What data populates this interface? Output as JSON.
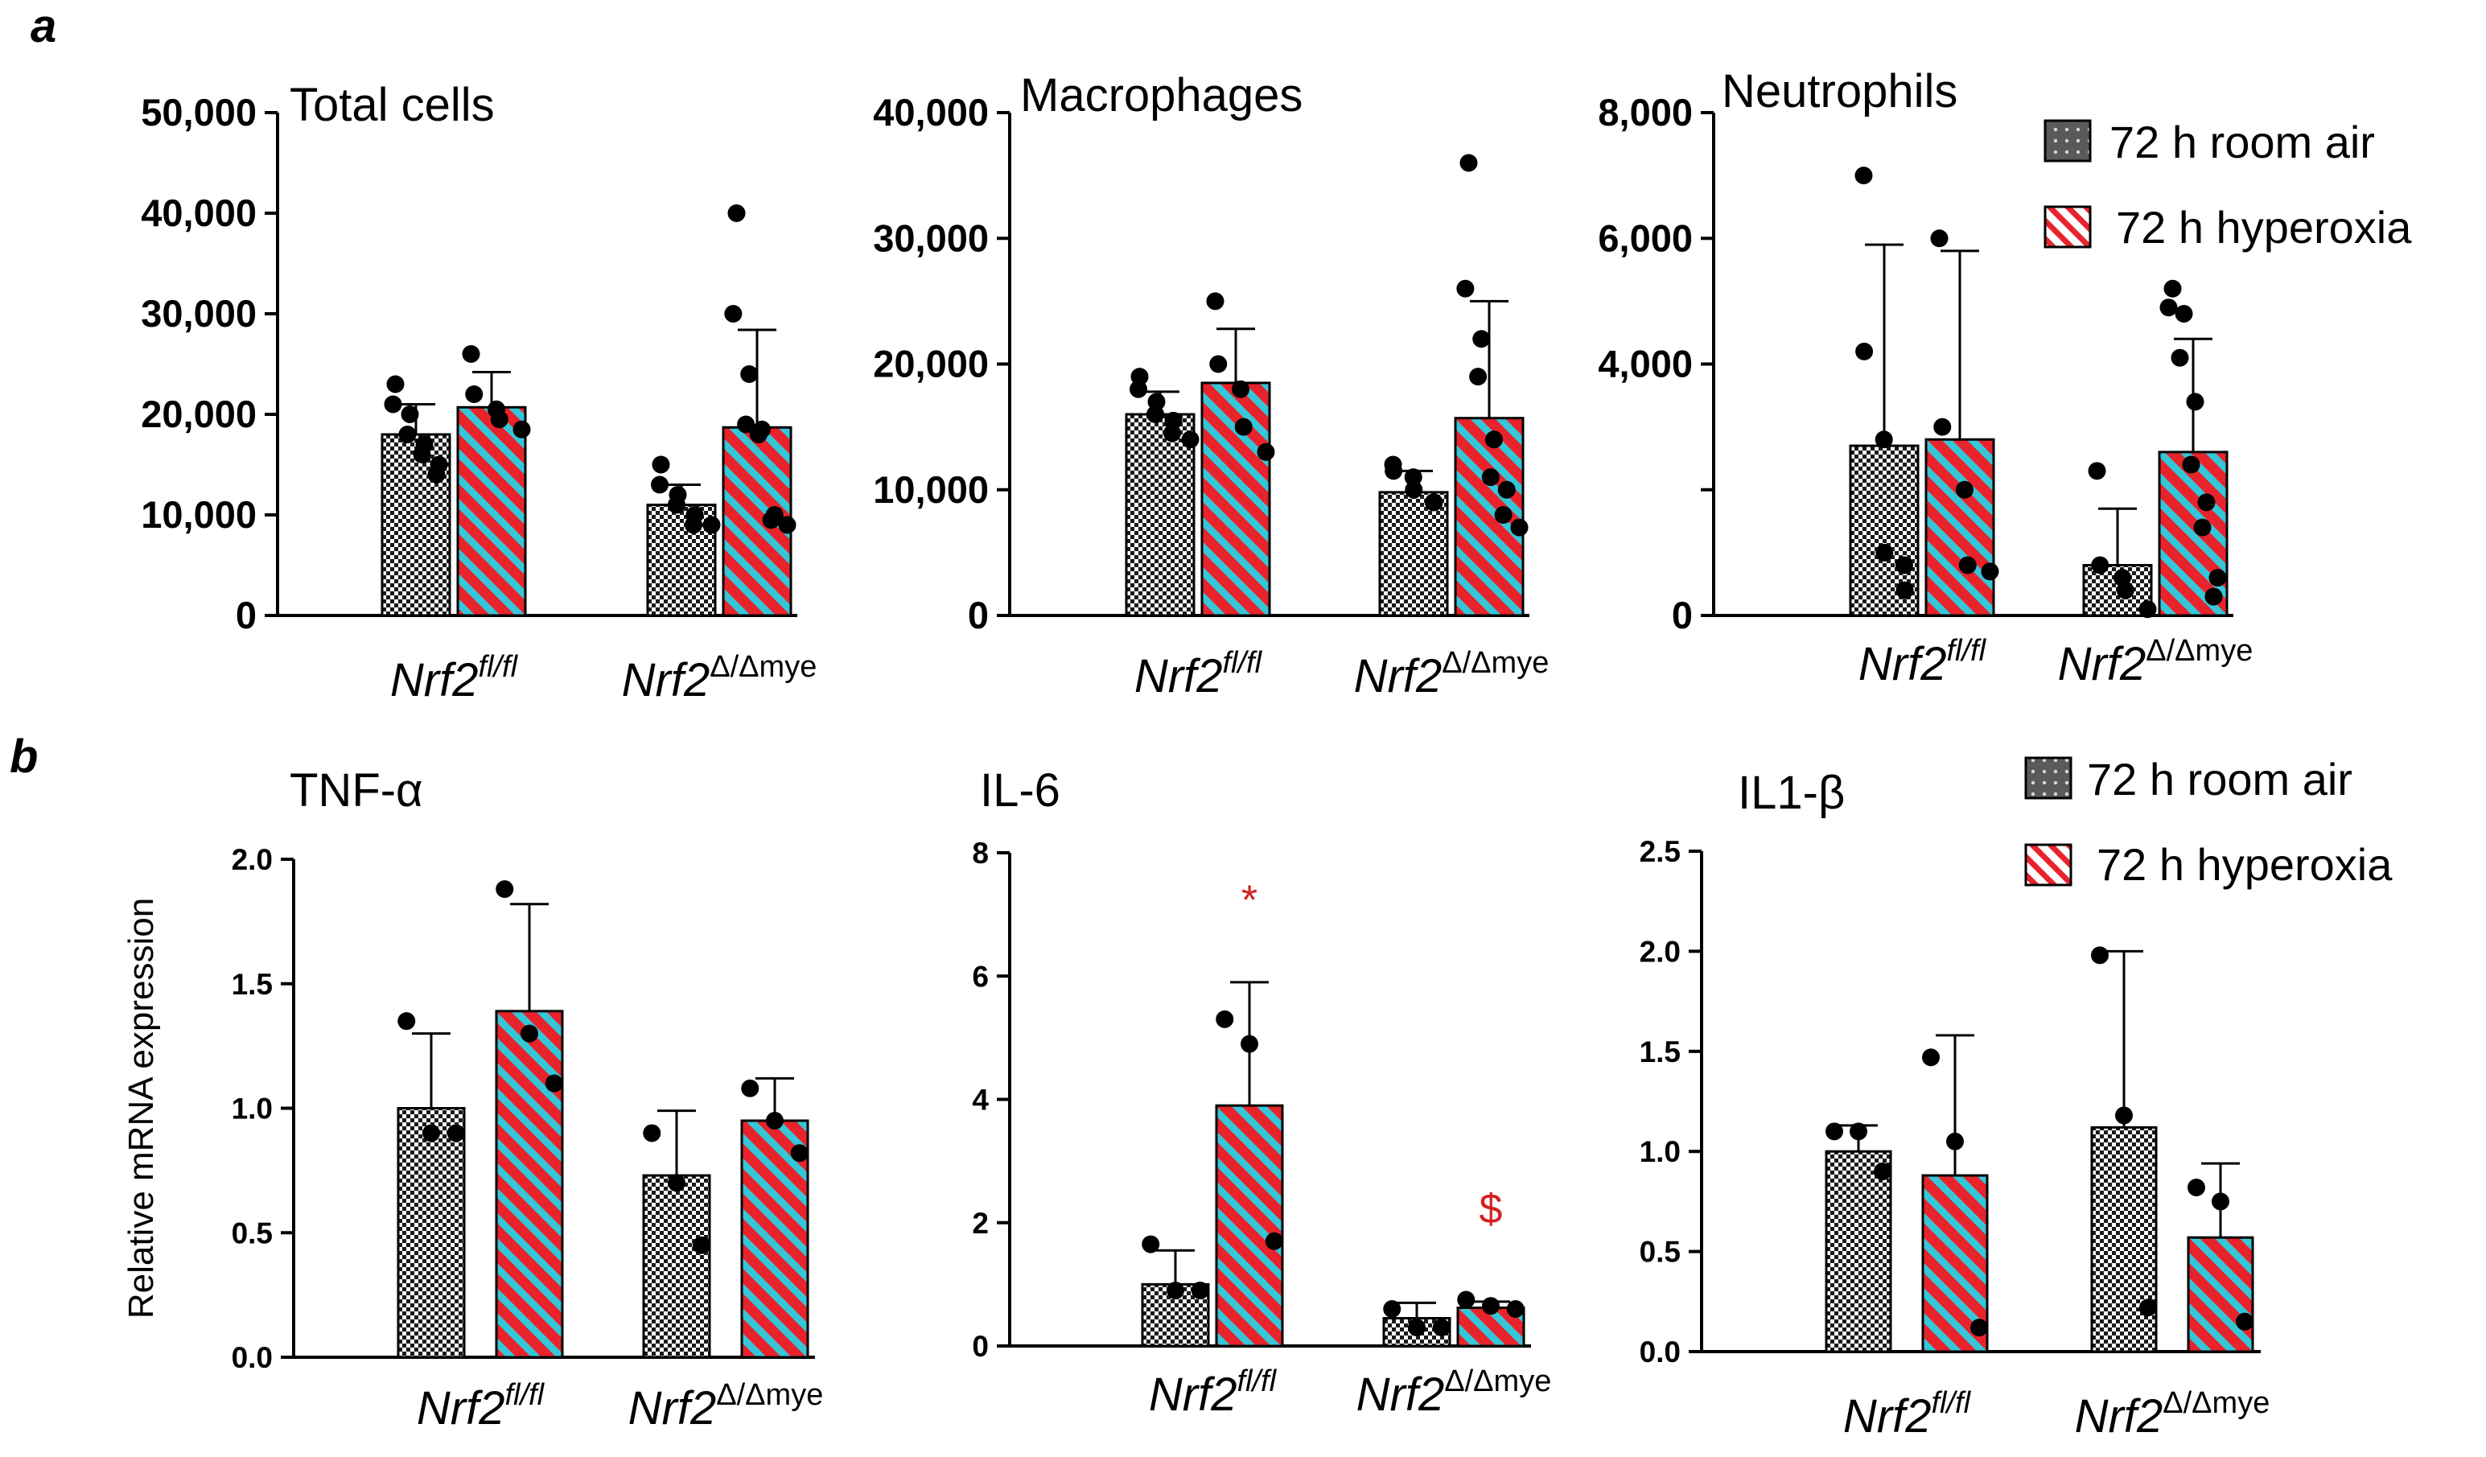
{
  "panel_labels": {
    "a": "a",
    "b": "b"
  },
  "legend": {
    "room_air": "72 h room air",
    "hyperoxia": "72 h hyperoxia"
  },
  "categories": [
    {
      "base": "Nrf2",
      "sup": "fl/fl"
    },
    {
      "base": "Nrf2",
      "sup": "Δ/Δmye"
    }
  ],
  "colors": {
    "hyperoxia_fill": "#e8232b",
    "hyperoxia_stripe": "#35c6d8",
    "room_air_fill": "#555555",
    "annotation": "#d32020"
  },
  "chart_data": [
    {
      "panel": "a",
      "type": "bar",
      "title": "Total cells",
      "ylabel": "",
      "ylim": [
        0,
        50000
      ],
      "yticks": [
        0,
        10000,
        20000,
        30000,
        40000,
        50000
      ],
      "ytick_labels": [
        "0",
        "10,000",
        "20,000",
        "30,000",
        "40,000",
        "50,000"
      ],
      "categories": [
        "Nrf2fl/fl",
        "Nrf2Δ/Δmye"
      ],
      "series": [
        {
          "name": "72 h room air",
          "values": [
            18000,
            11000
          ],
          "errors": [
            3000,
            2000
          ],
          "points": [
            [
              23000,
              21000,
              20000,
              18000,
              17000,
              16000,
              15000,
              14000
            ],
            [
              15000,
              13000,
              12000,
              11000,
              10000,
              9000,
              9000
            ]
          ]
        },
        {
          "name": "72 h hyperoxia",
          "values": [
            20700,
            18700
          ],
          "errors": [
            3500,
            9700
          ],
          "points": [
            [
              26000,
              22000,
              20500,
              19500,
              18500
            ],
            [
              40000,
              30000,
              24000,
              19000,
              18500,
              18000,
              10000,
              9500,
              9000
            ]
          ]
        }
      ]
    },
    {
      "panel": "a",
      "type": "bar",
      "title": "Macrophages",
      "ylabel": "",
      "ylim": [
        0,
        40000
      ],
      "yticks": [
        0,
        10000,
        20000,
        30000,
        40000
      ],
      "ytick_labels": [
        "0",
        "10,000",
        "20,000",
        "30,000",
        "40,000"
      ],
      "categories": [
        "Nrf2fl/fl",
        "Nrf2Δ/Δmye"
      ],
      "series": [
        {
          "name": "72 h room air",
          "values": [
            16000,
            9800
          ],
          "errors": [
            1800,
            1700
          ],
          "points": [
            [
              19000,
              18000,
              17000,
              16000,
              15500,
              14500,
              14000
            ],
            [
              12000,
              11500,
              11000,
              10000,
              9000,
              9000
            ]
          ]
        },
        {
          "name": "72 h hyperoxia",
          "values": [
            18500,
            15700
          ],
          "errors": [
            4300,
            9300
          ],
          "points": [
            [
              25000,
              20000,
              18000,
              15000,
              13000
            ],
            [
              36000,
              26000,
              22000,
              19000,
              14000,
              11000,
              10000,
              8000,
              7000
            ]
          ]
        }
      ]
    },
    {
      "panel": "a",
      "type": "bar",
      "title": "Neutrophils",
      "ylabel": "",
      "ylim": [
        0,
        8000
      ],
      "yticks": [
        0,
        2000,
        4000,
        6000,
        8000
      ],
      "ytick_labels": [
        "0",
        "",
        "4,000",
        "6,000",
        "8,000"
      ],
      "categories": [
        "Nrf2fl/fl",
        "Nrf2Δ/Δmye"
      ],
      "series": [
        {
          "name": "72 h room air",
          "values": [
            2700,
            800
          ],
          "errors": [
            3200,
            900
          ],
          "points": [
            [
              7000,
              4200,
              2800,
              1000,
              800,
              400
            ],
            [
              2300,
              800,
              600,
              400,
              100
            ]
          ]
        },
        {
          "name": "72 h hyperoxia",
          "values": [
            2800,
            2600
          ],
          "errors": [
            3000,
            1800
          ],
          "points": [
            [
              6000,
              3000,
              2000,
              800,
              700
            ],
            [
              5200,
              4900,
              4800,
              4100,
              3400,
              2400,
              1800,
              1400,
              600,
              300
            ]
          ]
        }
      ]
    },
    {
      "panel": "b",
      "type": "bar",
      "title": "TNF-α",
      "ylabel": "Relative mRNA expression",
      "ylim": [
        0,
        2.0
      ],
      "yticks": [
        0,
        0.5,
        1.0,
        1.5,
        2.0
      ],
      "ytick_labels": [
        "0.0",
        "0.5",
        "1.0",
        "1.5",
        "2.0"
      ],
      "categories": [
        "Nrf2fl/fl",
        "Nrf2Δ/Δmye"
      ],
      "series": [
        {
          "name": "72 h room air",
          "values": [
            1.0,
            0.73
          ],
          "errors": [
            0.3,
            0.26
          ],
          "points": [
            [
              1.35,
              0.9,
              0.9
            ],
            [
              0.9,
              0.7,
              0.45
            ]
          ]
        },
        {
          "name": "72 h hyperoxia",
          "values": [
            1.39,
            0.95
          ],
          "errors": [
            0.43,
            0.17
          ],
          "points": [
            [
              1.88,
              1.3,
              1.1
            ],
            [
              1.08,
              0.95,
              0.82
            ]
          ]
        }
      ]
    },
    {
      "panel": "b",
      "type": "bar",
      "title": "IL-6",
      "ylabel": "",
      "ylim": [
        0,
        8
      ],
      "yticks": [
        0,
        2,
        4,
        6,
        8
      ],
      "ytick_labels": [
        "0",
        "2",
        "4",
        "6",
        "8"
      ],
      "categories": [
        "Nrf2fl/fl",
        "Nrf2Δ/Δmye"
      ],
      "series": [
        {
          "name": "72 h room air",
          "values": [
            1.0,
            0.45
          ],
          "errors": [
            0.55,
            0.25
          ],
          "points": [
            [
              1.65,
              0.9,
              0.9
            ],
            [
              0.6,
              0.3,
              0.3
            ]
          ]
        },
        {
          "name": "72 h hyperoxia",
          "values": [
            3.9,
            0.62
          ],
          "errors": [
            2.0,
            0.1
          ],
          "points": [
            [
              5.3,
              4.9,
              1.7
            ],
            [
              0.75,
              0.65,
              0.6
            ]
          ]
        }
      ],
      "annotations": [
        {
          "text": "*",
          "group": 0,
          "series": 1,
          "y": 7.0
        },
        {
          "text": "$",
          "group": 1,
          "series": 1,
          "y": 2.0
        }
      ]
    },
    {
      "panel": "b",
      "type": "bar",
      "title": "IL1-β",
      "ylabel": "",
      "ylim": [
        0,
        2.5
      ],
      "yticks": [
        0,
        0.5,
        1.0,
        1.5,
        2.0,
        2.5
      ],
      "ytick_labels": [
        "0.0",
        "0.5",
        "1.0",
        "1.5",
        "2.0",
        "2.5"
      ],
      "categories": [
        "Nrf2fl/fl",
        "Nrf2Δ/Δmye"
      ],
      "series": [
        {
          "name": "72 h room air",
          "values": [
            1.0,
            1.12
          ],
          "errors": [
            0.13,
            0.88
          ],
          "points": [
            [
              1.1,
              1.1,
              0.9
            ],
            [
              1.98,
              1.18,
              0.22
            ]
          ]
        },
        {
          "name": "72 h hyperoxia",
          "values": [
            0.88,
            0.57
          ],
          "errors": [
            0.7,
            0.37
          ],
          "points": [
            [
              1.47,
              1.05,
              0.12
            ],
            [
              0.82,
              0.75,
              0.15
            ]
          ]
        }
      ]
    }
  ]
}
